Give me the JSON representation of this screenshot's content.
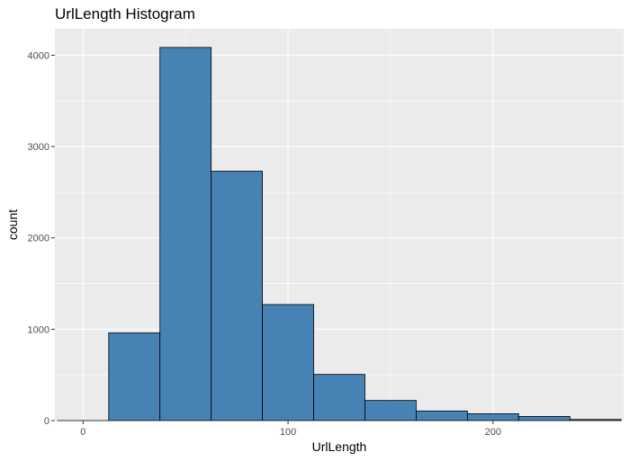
{
  "chart_data": {
    "type": "bar",
    "title": "UrlLength Histogram",
    "xlabel": "UrlLength",
    "ylabel": "count",
    "bin_width": 25,
    "bins": [
      {
        "start": -12.5,
        "end": 12.5,
        "count": 0
      },
      {
        "start": 12.5,
        "end": 37.5,
        "count": 960
      },
      {
        "start": 37.5,
        "end": 62.5,
        "count": 4085
      },
      {
        "start": 62.5,
        "end": 87.5,
        "count": 2730
      },
      {
        "start": 87.5,
        "end": 112.5,
        "count": 1270
      },
      {
        "start": 112.5,
        "end": 137.5,
        "count": 505
      },
      {
        "start": 137.5,
        "end": 162.5,
        "count": 220
      },
      {
        "start": 162.5,
        "end": 187.5,
        "count": 105
      },
      {
        "start": 187.5,
        "end": 212.5,
        "count": 75
      },
      {
        "start": 212.5,
        "end": 237.5,
        "count": 45
      },
      {
        "start": 237.5,
        "end": 262.5,
        "count": 12
      }
    ],
    "xlim": [
      -13.75,
      263.75
    ],
    "ylim": [
      0,
      4290
    ],
    "x_ticks": [
      0,
      100,
      200
    ],
    "y_ticks": [
      0,
      1000,
      2000,
      3000,
      4000
    ],
    "grid": true,
    "colors": {
      "fill": "#4682b4",
      "outline": "#000000",
      "panel": "#ebebeb",
      "grid": "#ffffff"
    }
  }
}
